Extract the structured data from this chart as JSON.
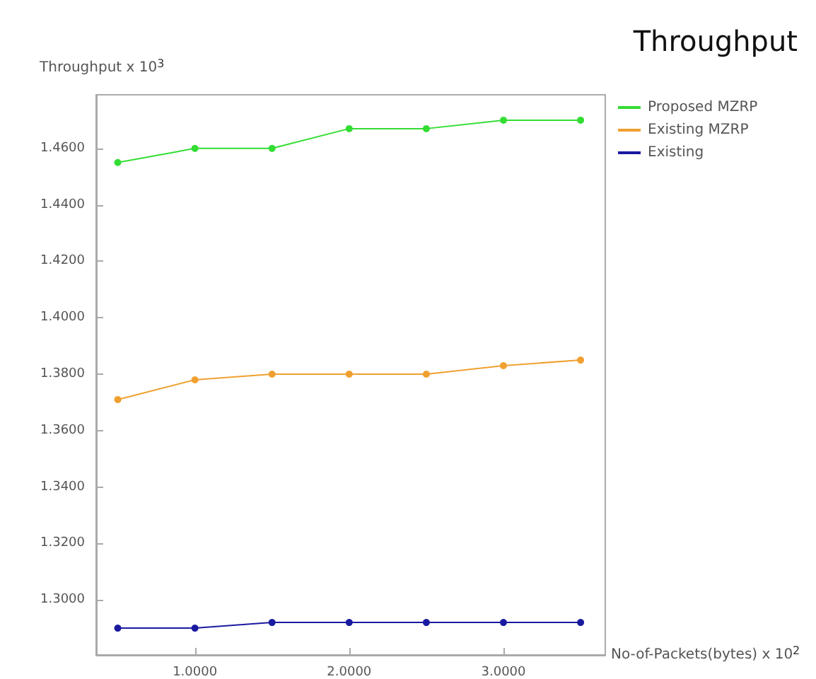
{
  "chart_data": {
    "type": "line",
    "title": "Throughput",
    "xlabel": "No-of-Packets(bytes) x 10$^{2}$",
    "ylabel": "Throughput x 10$^{3}$",
    "x": [
      0.5,
      1.0,
      1.5,
      2.0,
      2.5,
      3.0,
      3.5
    ],
    "series": [
      {
        "name": "Proposed MZRP",
        "color": "#33dd33",
        "values": [
          1.455,
          1.46,
          1.46,
          1.467,
          1.467,
          1.47,
          1.47
        ]
      },
      {
        "name": "Existing MZRP",
        "color": "#f0a030",
        "values": [
          1.371,
          1.378,
          1.38,
          1.38,
          1.38,
          1.383,
          1.385
        ]
      },
      {
        "name": "Existing",
        "color": "#1a1aa0",
        "values": [
          1.29,
          1.29,
          1.292,
          1.292,
          1.292,
          1.292,
          1.292
        ]
      }
    ],
    "xlim": [
      0.36,
      3.66
    ],
    "ylim": [
      1.2805,
      1.479
    ],
    "xticks": [
      {
        "value": 1,
        "label": "1.0000"
      },
      {
        "value": 2,
        "label": "2.0000"
      },
      {
        "value": 3,
        "label": "3.0000"
      }
    ],
    "yticks": [
      {
        "value": 1.3,
        "label": "1.3000"
      },
      {
        "value": 1.32,
        "label": "1.3200"
      },
      {
        "value": 1.34,
        "label": "1.3400"
      },
      {
        "value": 1.36,
        "label": "1.3600"
      },
      {
        "value": 1.38,
        "label": "1.3800"
      },
      {
        "value": 1.4,
        "label": "1.4000"
      },
      {
        "value": 1.42,
        "label": "1.4200"
      },
      {
        "value": 1.44,
        "label": "1.4400"
      },
      {
        "value": 1.46,
        "label": "1.4600"
      }
    ],
    "grid": false,
    "legend": "top right",
    "marker": "circle",
    "line_style": "solid"
  }
}
